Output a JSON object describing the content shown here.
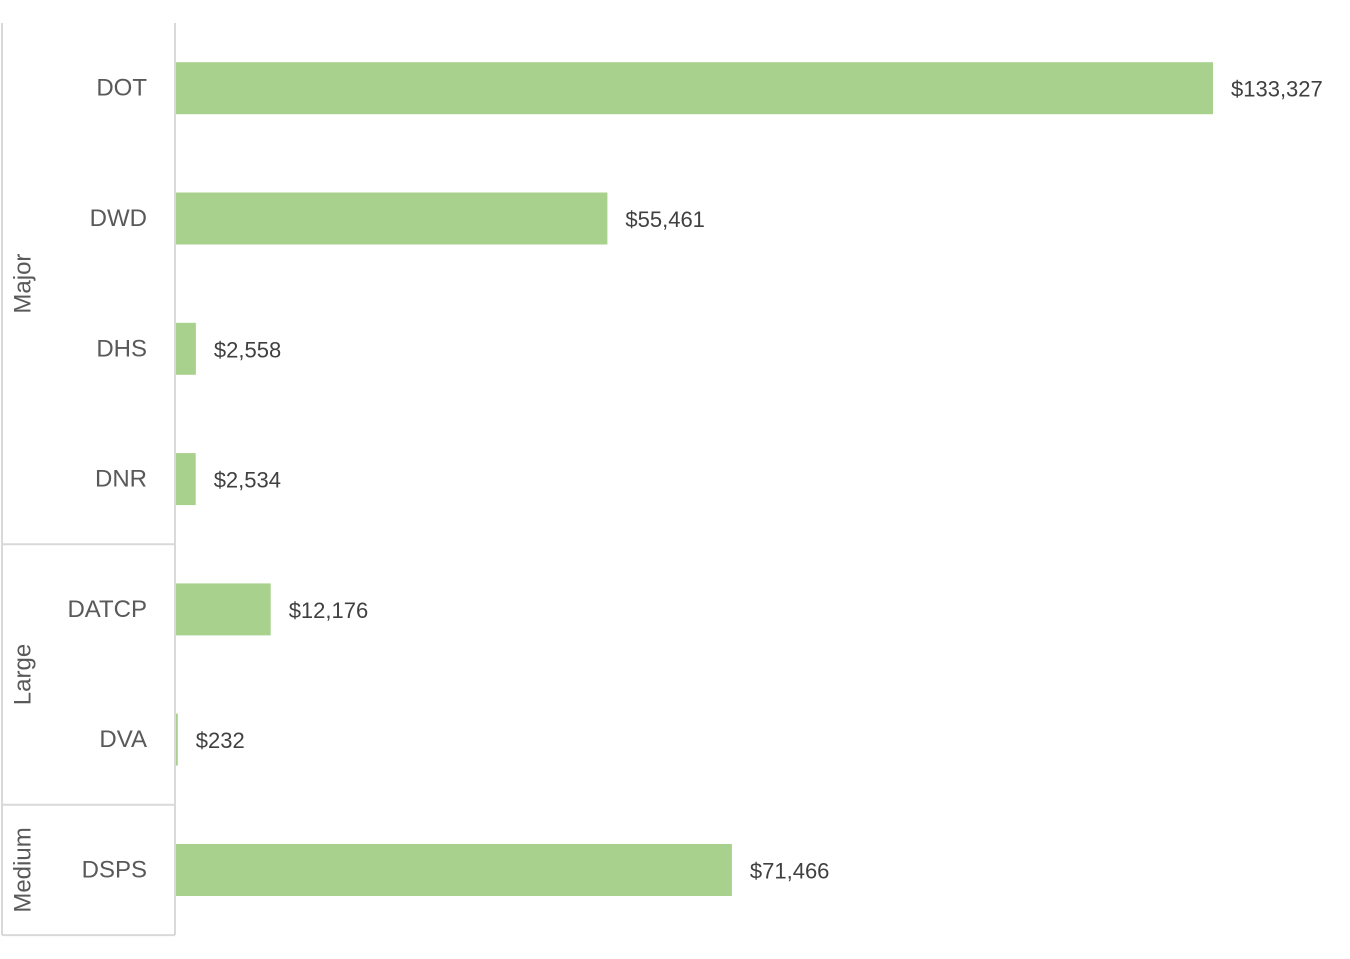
{
  "chart_data": {
    "type": "bar",
    "orientation": "horizontal",
    "title": "",
    "xlabel": "",
    "ylabel": "",
    "grid": false,
    "legend": "none",
    "bar_color": "#a9d18e",
    "xlim": [
      0,
      133327
    ],
    "groups": [
      {
        "name": "Major",
        "categories": [
          "DOT",
          "DWD",
          "DHS",
          "DNR"
        ]
      },
      {
        "name": "Large",
        "categories": [
          "DATCP",
          "DVA"
        ]
      },
      {
        "name": "Medium",
        "categories": [
          "DSPS"
        ]
      }
    ],
    "categories": [
      "DOT",
      "DWD",
      "DHS",
      "DNR",
      "DATCP",
      "DVA",
      "DSPS"
    ],
    "values": [
      133327,
      55461,
      2558,
      2534,
      12176,
      232,
      71466
    ],
    "data_labels": [
      "$133,327",
      "$55,461",
      "$2,558",
      "$2,534",
      "$12,176",
      "$232",
      "$71,466"
    ]
  }
}
